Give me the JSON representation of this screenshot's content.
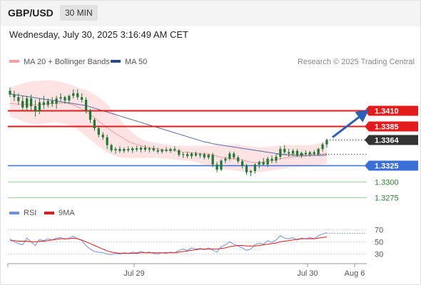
{
  "header": {
    "symbol": "GBP/USD",
    "timeframe": "30 MIN",
    "datetime": "Wednesday, July 30, 2025 3:16:49 AM CET"
  },
  "legend": {
    "ma20": "MA 20 + Bollinger Bands",
    "ma50": "MA 50",
    "copyright": "Research © 2025 Trading Central"
  },
  "rsi_legend": {
    "rsi": "RSI",
    "ma9": "9MA"
  },
  "colors": {
    "resistance": "#e31b1b",
    "support": "#3a6fd8",
    "target": "#4caf50",
    "bollinger_fill": "#fde3e3",
    "ma20": "#f2a0a0",
    "ma50": "#5a6aa8",
    "candle": "#1f7a3a",
    "arrow": "#2c5fb8",
    "current": "#333333",
    "rsi": "#6f8fe8",
    "rsi_ma": "#e31b1b"
  },
  "chart_data": {
    "type": "candlestick",
    "y_range": [
      1.325,
      1.347
    ],
    "levels": [
      {
        "label": "1.3410",
        "value": 1.341,
        "kind": "resistance"
      },
      {
        "label": "1.3385",
        "value": 1.3385,
        "kind": "resistance"
      },
      {
        "label": "1.3364",
        "value": 1.3364,
        "kind": "current"
      },
      {
        "label": "1.3325",
        "value": 1.3325,
        "kind": "support"
      },
      {
        "label": "1.3300",
        "value": 1.33,
        "kind": "target"
      },
      {
        "label": "1.3275",
        "value": 1.3275,
        "kind": "target"
      }
    ],
    "x_labels": [
      "Jul 29",
      "Jul 30",
      "Aug 6"
    ],
    "candles": [
      [
        1.344,
        1.3445,
        1.343,
        1.3434
      ],
      [
        1.3434,
        1.344,
        1.3424,
        1.343
      ],
      [
        1.343,
        1.3436,
        1.3418,
        1.3424
      ],
      [
        1.3424,
        1.3432,
        1.3408,
        1.3414
      ],
      [
        1.3414,
        1.3432,
        1.341,
        1.3428
      ],
      [
        1.3428,
        1.3434,
        1.341,
        1.3416
      ],
      [
        1.3416,
        1.3426,
        1.34,
        1.3408
      ],
      [
        1.3408,
        1.3428,
        1.3404,
        1.3422
      ],
      [
        1.3422,
        1.3432,
        1.3412,
        1.3418
      ],
      [
        1.3418,
        1.3428,
        1.3414,
        1.3424
      ],
      [
        1.3424,
        1.343,
        1.3415,
        1.342
      ],
      [
        1.342,
        1.3432,
        1.3412,
        1.3428
      ],
      [
        1.3428,
        1.3436,
        1.3424,
        1.343
      ],
      [
        1.343,
        1.3432,
        1.342,
        1.3425
      ],
      [
        1.3425,
        1.3434,
        1.342,
        1.3432
      ],
      [
        1.3432,
        1.3442,
        1.3428,
        1.3436
      ],
      [
        1.3436,
        1.3442,
        1.3426,
        1.343
      ],
      [
        1.343,
        1.3436,
        1.3422,
        1.3426
      ],
      [
        1.3426,
        1.343,
        1.3405,
        1.341
      ],
      [
        1.341,
        1.3412,
        1.339,
        1.3395
      ],
      [
        1.3395,
        1.3398,
        1.3378,
        1.3382
      ],
      [
        1.3382,
        1.3385,
        1.3368,
        1.3372
      ],
      [
        1.3372,
        1.3376,
        1.3364,
        1.3368
      ],
      [
        1.3368,
        1.3372,
        1.335,
        1.3356
      ],
      [
        1.3356,
        1.3358,
        1.3345,
        1.3348
      ],
      [
        1.3348,
        1.3353,
        1.3343,
        1.335
      ],
      [
        1.335,
        1.3354,
        1.3344,
        1.3347
      ],
      [
        1.3347,
        1.3352,
        1.3344,
        1.335
      ],
      [
        1.335,
        1.3354,
        1.3345,
        1.3348
      ],
      [
        1.3348,
        1.3353,
        1.3344,
        1.3351
      ],
      [
        1.3351,
        1.3355,
        1.3346,
        1.3349
      ],
      [
        1.3349,
        1.3354,
        1.3345,
        1.3352
      ],
      [
        1.3352,
        1.3356,
        1.3346,
        1.3349
      ],
      [
        1.3349,
        1.3353,
        1.3345,
        1.3351
      ],
      [
        1.3351,
        1.3355,
        1.3346,
        1.3348
      ],
      [
        1.3348,
        1.3352,
        1.3343,
        1.3346
      ],
      [
        1.3346,
        1.3351,
        1.3343,
        1.3349
      ],
      [
        1.3349,
        1.3353,
        1.3345,
        1.3347
      ],
      [
        1.3347,
        1.3352,
        1.3344,
        1.335
      ],
      [
        1.335,
        1.3354,
        1.3346,
        1.3348
      ],
      [
        1.3348,
        1.335,
        1.3338,
        1.3341
      ],
      [
        1.3341,
        1.3345,
        1.3336,
        1.3342
      ],
      [
        1.3342,
        1.3346,
        1.3336,
        1.3339
      ],
      [
        1.3339,
        1.3345,
        1.3335,
        1.3343
      ],
      [
        1.3343,
        1.3346,
        1.3338,
        1.334
      ],
      [
        1.334,
        1.3344,
        1.3336,
        1.3342
      ],
      [
        1.3342,
        1.3344,
        1.3334,
        1.3337
      ],
      [
        1.3337,
        1.3343,
        1.3334,
        1.3341
      ],
      [
        1.3341,
        1.3344,
        1.3322,
        1.3326
      ],
      [
        1.3326,
        1.333,
        1.3314,
        1.3318
      ],
      [
        1.3318,
        1.3334,
        1.3316,
        1.3332
      ],
      [
        1.3332,
        1.3338,
        1.3328,
        1.3335
      ],
      [
        1.3335,
        1.3346,
        1.3332,
        1.3343
      ],
      [
        1.3343,
        1.3346,
        1.3334,
        1.3337
      ],
      [
        1.3337,
        1.334,
        1.3328,
        1.3331
      ],
      [
        1.3331,
        1.3334,
        1.332,
        1.3324
      ],
      [
        1.3324,
        1.3327,
        1.331,
        1.3314
      ],
      [
        1.3314,
        1.3318,
        1.3308,
        1.3316
      ],
      [
        1.3316,
        1.3328,
        1.3312,
        1.3326
      ],
      [
        1.3326,
        1.3332,
        1.332,
        1.333
      ],
      [
        1.333,
        1.3336,
        1.3324,
        1.3326
      ],
      [
        1.3326,
        1.3338,
        1.3322,
        1.3335
      ],
      [
        1.3335,
        1.334,
        1.3328,
        1.3332
      ],
      [
        1.3332,
        1.3342,
        1.3328,
        1.3338
      ],
      [
        1.3338,
        1.3354,
        1.3334,
        1.335
      ],
      [
        1.335,
        1.3356,
        1.3342,
        1.3345
      ],
      [
        1.3345,
        1.335,
        1.3338,
        1.3343
      ],
      [
        1.3343,
        1.335,
        1.334,
        1.3347
      ],
      [
        1.3347,
        1.335,
        1.3338,
        1.334
      ],
      [
        1.334,
        1.3346,
        1.3336,
        1.3344
      ],
      [
        1.3344,
        1.3348,
        1.334,
        1.3342
      ],
      [
        1.3342,
        1.3347,
        1.3338,
        1.3345
      ],
      [
        1.3345,
        1.3348,
        1.334,
        1.3342
      ],
      [
        1.3342,
        1.3352,
        1.334,
        1.335
      ],
      [
        1.335,
        1.336,
        1.3346,
        1.3357
      ],
      [
        1.3357,
        1.3366,
        1.3352,
        1.3364
      ]
    ],
    "ma20": [
      1.342,
      1.342,
      1.3419,
      1.3419,
      1.3419,
      1.3418,
      1.3418,
      1.3418,
      1.3419,
      1.342,
      1.342,
      1.342,
      1.3421,
      1.3421,
      1.342,
      1.3418,
      1.3415,
      1.3412,
      1.3408,
      1.3403,
      1.3398,
      1.3393,
      1.3388,
      1.3383,
      1.3378,
      1.3374,
      1.337,
      1.3366,
      1.3362,
      1.3359,
      1.3357,
      1.3355,
      1.3353,
      1.3352,
      1.3351,
      1.335,
      1.3349,
      1.3348,
      1.3348,
      1.3347,
      1.3346,
      1.3345,
      1.3345,
      1.3344,
      1.3344,
      1.3343,
      1.3343,
      1.3342,
      1.3341,
      1.3339,
      1.3337,
      1.3336,
      1.3335,
      1.3335,
      1.3334,
      1.3333,
      1.3331,
      1.333,
      1.3329,
      1.3329,
      1.333,
      1.3331,
      1.3332,
      1.3333,
      1.3335,
      1.3336,
      1.3337,
      1.3338,
      1.3338,
      1.3339,
      1.3339,
      1.334,
      1.334,
      1.3341,
      1.3342,
      1.3344
    ],
    "bb_upper": [
      1.3445,
      1.3447,
      1.3449,
      1.3451,
      1.3453,
      1.3454,
      1.3455,
      1.3455,
      1.3456,
      1.3456,
      1.3456,
      1.3455,
      1.3454,
      1.3452,
      1.345,
      1.3448,
      1.3445,
      1.3443,
      1.3441,
      1.3438,
      1.3434,
      1.343,
      1.3425,
      1.3419,
      1.3412,
      1.3404,
      1.3396,
      1.3388,
      1.3381,
      1.3375,
      1.337,
      1.3366,
      1.3363,
      1.3361,
      1.336,
      1.3359,
      1.3358,
      1.3357,
      1.3356,
      1.3355,
      1.3355,
      1.3355,
      1.3355,
      1.3355,
      1.3355,
      1.3355,
      1.3355,
      1.3355,
      1.3355,
      1.3356,
      1.3356,
      1.3356,
      1.3356,
      1.3357,
      1.3357,
      1.3356,
      1.3355,
      1.3354,
      1.3353,
      1.3353,
      1.3353,
      1.3354,
      1.3354,
      1.3355,
      1.3355,
      1.3356,
      1.3356,
      1.3356,
      1.3356,
      1.3356,
      1.3356,
      1.3356,
      1.3357,
      1.3358,
      1.336,
      1.3363
    ],
    "bb_lower": [
      1.34,
      1.3398,
      1.3396,
      1.3393,
      1.3391,
      1.3389,
      1.3388,
      1.3388,
      1.3389,
      1.339,
      1.3391,
      1.3391,
      1.339,
      1.3389,
      1.3387,
      1.3384,
      1.338,
      1.3375,
      1.337,
      1.3364,
      1.3359,
      1.3354,
      1.3349,
      1.3345,
      1.3341,
      1.3339,
      1.3337,
      1.3336,
      1.3336,
      1.3336,
      1.3336,
      1.3336,
      1.3336,
      1.3336,
      1.3336,
      1.3336,
      1.3335,
      1.3335,
      1.3334,
      1.3334,
      1.3333,
      1.3332,
      1.3332,
      1.3331,
      1.333,
      1.3328,
      1.3326,
      1.3324,
      1.3322,
      1.3321,
      1.332,
      1.3319,
      1.3318,
      1.3317,
      1.3316,
      1.3315,
      1.3314,
      1.3314,
      1.3314,
      1.3314,
      1.3315,
      1.3316,
      1.3317,
      1.3318,
      1.3319,
      1.332,
      1.3321,
      1.3322,
      1.3322,
      1.3323,
      1.3323,
      1.3323,
      1.3324,
      1.3325,
      1.3326,
      1.3327
    ],
    "ma50": [
      1.3435,
      1.3434,
      1.3433,
      1.3432,
      1.3431,
      1.343,
      1.3429,
      1.3428,
      1.3427,
      1.3426,
      1.3425,
      1.3424,
      1.3423,
      1.3422,
      1.3421,
      1.342,
      1.3419,
      1.3418,
      1.3417,
      1.3415,
      1.3413,
      1.3411,
      1.3409,
      1.3407,
      1.3405,
      1.3403,
      1.3401,
      1.3399,
      1.3397,
      1.3395,
      1.3393,
      1.3391,
      1.3389,
      1.3387,
      1.3385,
      1.3383,
      1.3381,
      1.3379,
      1.3377,
      1.3375,
      1.3373,
      1.3371,
      1.3369,
      1.3367,
      1.3365,
      1.3363,
      1.3361,
      1.336,
      1.3358,
      1.3357,
      1.3356,
      1.3355,
      1.3354,
      1.3353,
      1.3352,
      1.3351,
      1.335,
      1.3349,
      1.3348,
      1.3347,
      1.3346,
      1.3345,
      1.3344,
      1.3343,
      1.3342,
      1.3341,
      1.3341,
      1.334,
      1.334,
      1.334,
      1.334,
      1.334,
      1.334,
      1.334,
      1.334,
      1.3341
    ],
    "rsi": {
      "y_range": [
        20,
        75
      ],
      "ticks": [
        70,
        50,
        30
      ],
      "values": [
        55,
        50,
        47,
        45,
        56,
        50,
        44,
        54,
        52,
        55,
        53,
        56,
        57,
        54,
        56,
        59,
        55,
        52,
        44,
        38,
        34,
        33,
        32,
        30,
        29,
        31,
        30,
        32,
        31,
        33,
        32,
        34,
        32,
        33,
        31,
        30,
        32,
        31,
        33,
        32,
        36,
        38,
        36,
        40,
        38,
        39,
        37,
        40,
        36,
        33,
        42,
        45,
        50,
        46,
        43,
        40,
        36,
        38,
        45,
        48,
        46,
        52,
        49,
        53,
        60,
        56,
        55,
        57,
        53,
        56,
        55,
        57,
        55,
        60,
        63,
        65
      ],
      "ma9": [
        52,
        52,
        51,
        51,
        51,
        50,
        50,
        51,
        51,
        52,
        53,
        54,
        55,
        55,
        55,
        56,
        55,
        53,
        50,
        47,
        44,
        41,
        38,
        35,
        33,
        32,
        31,
        31,
        31,
        31,
        31,
        32,
        32,
        32,
        32,
        32,
        32,
        32,
        32,
        32,
        33,
        34,
        35,
        36,
        37,
        38,
        38,
        38,
        38,
        38,
        39,
        40,
        42,
        43,
        44,
        44,
        43,
        43,
        43,
        44,
        45,
        46,
        47,
        48,
        50,
        51,
        52,
        53,
        54,
        55,
        55,
        55,
        55,
        56,
        57,
        58
      ]
    }
  }
}
